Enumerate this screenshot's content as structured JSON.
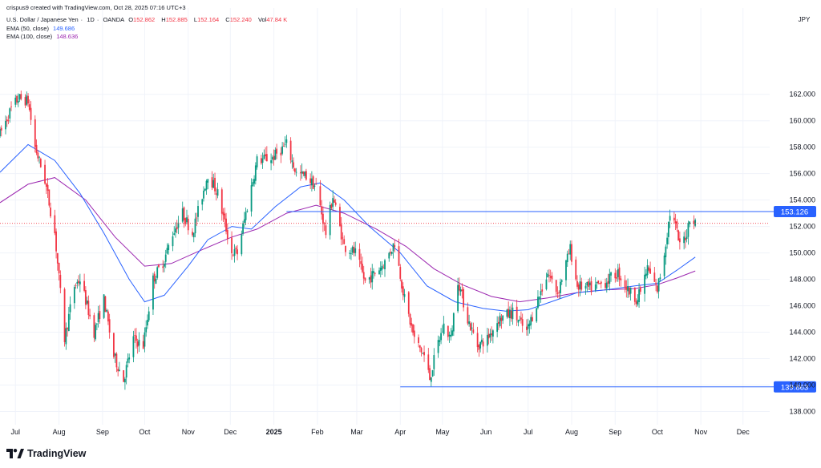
{
  "meta": {
    "created_by": "crispus9 created with TradingView.com, Oct 28, 2025 07:16 UTC+3"
  },
  "header": {
    "symbol": "U.S. Dollar / Japanese Yen",
    "interval": "1D",
    "source": "OANDA",
    "ohlc": {
      "o_label": "O",
      "o": "152.862",
      "h_label": "H",
      "h": "152.885",
      "l_label": "L",
      "l": "152.164",
      "c_label": "C",
      "c": "152.240",
      "vol_label": "Vol",
      "vol": "47.84 K"
    },
    "indicators": [
      {
        "label": "EMA (50, close)",
        "value": "149.686",
        "color": "#2962ff"
      },
      {
        "label": "EMA (100, close)",
        "value": "148.636",
        "color": "#9c27b0"
      }
    ]
  },
  "brand": {
    "name": "TradingView"
  },
  "colors": {
    "up": "#089981",
    "down": "#f23645",
    "hline": "#2962ff",
    "ema50": "#2962ff",
    "ema100": "#9c27b0",
    "grid": "#f0f3fa",
    "text": "#131722",
    "price_dots": "#f23645"
  },
  "chart_data": {
    "type": "candlestick",
    "currency": "JPY",
    "ylim": [
      137,
      165.5
    ],
    "yticks": [
      "138.000",
      "140.000",
      "142.000",
      "144.000",
      "146.000",
      "148.000",
      "150.000",
      "152.000",
      "154.000",
      "156.000",
      "158.000",
      "160.000",
      "162.000"
    ],
    "xticks": [
      {
        "label": "Jul",
        "date": "2024-07-01"
      },
      {
        "label": "Aug",
        "date": "2024-08-01"
      },
      {
        "label": "Sep",
        "date": "2024-09-01"
      },
      {
        "label": "Oct",
        "date": "2024-10-01"
      },
      {
        "label": "Nov",
        "date": "2024-11-01"
      },
      {
        "label": "Dec",
        "date": "2024-12-01"
      },
      {
        "label": "2025",
        "date": "2025-01-01",
        "bold": true
      },
      {
        "label": "Feb",
        "date": "2025-02-01"
      },
      {
        "label": "Mar",
        "date": "2025-03-01"
      },
      {
        "label": "Apr",
        "date": "2025-04-01"
      },
      {
        "label": "May",
        "date": "2025-05-01"
      },
      {
        "label": "Jun",
        "date": "2025-06-01"
      },
      {
        "label": "Jul",
        "date": "2025-07-01"
      },
      {
        "label": "Aug",
        "date": "2025-08-01"
      },
      {
        "label": "Sep",
        "date": "2025-09-01"
      },
      {
        "label": "Oct",
        "date": "2025-10-01"
      },
      {
        "label": "Nov",
        "date": "2025-11-01"
      },
      {
        "label": "Dec",
        "date": "2025-12-01"
      }
    ],
    "xlim": [
      "2024-06-20",
      "2025-12-20"
    ],
    "last_price": 152.24,
    "hlines": [
      {
        "value": 153.126,
        "label": "153.126",
        "from": "2025-01-10"
      },
      {
        "value": 139.863,
        "label": "139.863",
        "from": "2025-04-01"
      }
    ],
    "path": [
      [
        "2024-06-20",
        159.0
      ],
      [
        "2024-06-28",
        160.9
      ],
      [
        "2024-07-03",
        161.7
      ],
      [
        "2024-07-10",
        161.5
      ],
      [
        "2024-07-15",
        158.0
      ],
      [
        "2024-07-22",
        155.5
      ],
      [
        "2024-07-29",
        151.5
      ],
      [
        "2024-08-05",
        143.5
      ],
      [
        "2024-08-12",
        147.5
      ],
      [
        "2024-08-16",
        148.0
      ],
      [
        "2024-08-26",
        144.0
      ],
      [
        "2024-09-02",
        146.5
      ],
      [
        "2024-09-09",
        142.2
      ],
      [
        "2024-09-16",
        140.4
      ],
      [
        "2024-09-23",
        143.5
      ],
      [
        "2024-09-30",
        143.0
      ],
      [
        "2024-10-07",
        148.0
      ],
      [
        "2024-10-15",
        149.5
      ],
      [
        "2024-10-21",
        151.5
      ],
      [
        "2024-10-28",
        153.0
      ],
      [
        "2024-11-04",
        151.5
      ],
      [
        "2024-11-15",
        156.0
      ],
      [
        "2024-11-22",
        154.5
      ],
      [
        "2024-12-02",
        150.0
      ],
      [
        "2024-12-06",
        150.0
      ],
      [
        "2024-12-13",
        153.5
      ],
      [
        "2024-12-20",
        157.0
      ],
      [
        "2024-12-31",
        157.2
      ],
      [
        "2025-01-10",
        158.2
      ],
      [
        "2025-01-17",
        156.0
      ],
      [
        "2025-01-24",
        155.8
      ],
      [
        "2025-01-31",
        155.0
      ],
      [
        "2025-02-07",
        151.5
      ],
      [
        "2025-02-12",
        154.3
      ],
      [
        "2025-02-20",
        150.5
      ],
      [
        "2025-02-28",
        150.0
      ],
      [
        "2025-03-07",
        147.8
      ],
      [
        "2025-03-14",
        148.5
      ],
      [
        "2025-03-21",
        149.3
      ],
      [
        "2025-03-28",
        150.8
      ],
      [
        "2025-04-04",
        146.5
      ],
      [
        "2025-04-11",
        143.5
      ],
      [
        "2025-04-18",
        142.2
      ],
      [
        "2025-04-22",
        140.5
      ],
      [
        "2025-04-28",
        143.2
      ],
      [
        "2025-05-02",
        144.5
      ],
      [
        "2025-05-07",
        143.5
      ],
      [
        "2025-05-12",
        148.0
      ],
      [
        "2025-05-19",
        145.0
      ],
      [
        "2025-05-26",
        143.0
      ],
      [
        "2025-06-02",
        143.5
      ],
      [
        "2025-06-10",
        145.0
      ],
      [
        "2025-06-20",
        145.5
      ],
      [
        "2025-06-30",
        144.0
      ],
      [
        "2025-07-08",
        146.5
      ],
      [
        "2025-07-15",
        148.5
      ],
      [
        "2025-07-22",
        147.0
      ],
      [
        "2025-07-31",
        150.3
      ],
      [
        "2025-08-05",
        147.5
      ],
      [
        "2025-08-15",
        147.3
      ],
      [
        "2025-08-25",
        147.8
      ],
      [
        "2025-09-03",
        148.5
      ],
      [
        "2025-09-10",
        147.2
      ],
      [
        "2025-09-17",
        146.5
      ],
      [
        "2025-09-24",
        148.8
      ],
      [
        "2025-10-01",
        147.2
      ],
      [
        "2025-10-06",
        150.0
      ],
      [
        "2025-10-10",
        153.0
      ],
      [
        "2025-10-14",
        152.0
      ],
      [
        "2025-10-17",
        150.5
      ],
      [
        "2025-10-22",
        151.5
      ],
      [
        "2025-10-24",
        152.8
      ],
      [
        "2025-10-28",
        152.24
      ]
    ],
    "ema50": [
      [
        "2024-06-20",
        156.1
      ],
      [
        "2024-07-10",
        158.2
      ],
      [
        "2024-07-29",
        157.0
      ],
      [
        "2024-08-16",
        154.5
      ],
      [
        "2024-09-02",
        151.5
      ],
      [
        "2024-09-20",
        148.0
      ],
      [
        "2024-10-01",
        146.3
      ],
      [
        "2024-10-15",
        146.8
      ],
      [
        "2024-11-01",
        149.0
      ],
      [
        "2024-11-15",
        151.0
      ],
      [
        "2024-12-02",
        152.0
      ],
      [
        "2024-12-16",
        151.8
      ],
      [
        "2025-01-02",
        153.5
      ],
      [
        "2025-01-20",
        155.0
      ],
      [
        "2025-02-03",
        155.3
      ],
      [
        "2025-02-20",
        154.0
      ],
      [
        "2025-03-10",
        152.0
      ],
      [
        "2025-04-01",
        150.0
      ],
      [
        "2025-04-20",
        147.5
      ],
      [
        "2025-05-10",
        146.3
      ],
      [
        "2025-05-30",
        145.8
      ],
      [
        "2025-06-15",
        145.6
      ],
      [
        "2025-07-01",
        145.7
      ],
      [
        "2025-07-20",
        146.4
      ],
      [
        "2025-08-05",
        147.0
      ],
      [
        "2025-08-25",
        147.2
      ],
      [
        "2025-09-15",
        147.5
      ],
      [
        "2025-10-01",
        147.7
      ],
      [
        "2025-10-15",
        148.7
      ],
      [
        "2025-10-28",
        149.686
      ]
    ],
    "ema100": [
      [
        "2024-06-20",
        153.8
      ],
      [
        "2024-07-10",
        155.2
      ],
      [
        "2024-07-29",
        155.7
      ],
      [
        "2024-08-20",
        154.0
      ],
      [
        "2024-09-10",
        151.2
      ],
      [
        "2024-10-01",
        149.0
      ],
      [
        "2024-10-20",
        149.2
      ],
      [
        "2024-11-10",
        150.2
      ],
      [
        "2024-12-02",
        151.2
      ],
      [
        "2024-12-20",
        151.8
      ],
      [
        "2025-01-10",
        153.0
      ],
      [
        "2025-01-31",
        153.6
      ],
      [
        "2025-02-20",
        153.0
      ],
      [
        "2025-03-15",
        151.8
      ],
      [
        "2025-04-05",
        150.5
      ],
      [
        "2025-04-25",
        148.8
      ],
      [
        "2025-05-15",
        147.6
      ],
      [
        "2025-06-05",
        146.7
      ],
      [
        "2025-06-25",
        146.3
      ],
      [
        "2025-07-15",
        146.6
      ],
      [
        "2025-08-05",
        147.0
      ],
      [
        "2025-08-25",
        147.2
      ],
      [
        "2025-09-15",
        147.3
      ],
      [
        "2025-10-01",
        147.6
      ],
      [
        "2025-10-15",
        148.1
      ],
      [
        "2025-10-28",
        148.636
      ]
    ]
  }
}
